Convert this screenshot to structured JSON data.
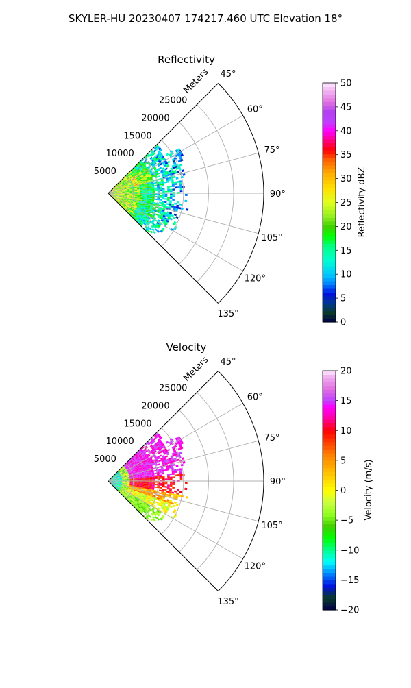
{
  "figure": {
    "title": "SKYLER-HU  20230407  174217.460 UTC Elevation 18°"
  },
  "chart_data": [
    {
      "type": "heatmap",
      "title": "Reflectivity",
      "projection": "polar-sector",
      "range_label": "Meters",
      "range_ticks": [
        5000,
        10000,
        15000,
        20000,
        25000
      ],
      "range_max": 31000,
      "azimuth_min_deg": 45,
      "azimuth_max_deg": 135,
      "azimuth_ticks_deg": [
        45,
        60,
        75,
        90,
        105,
        120,
        135
      ],
      "azimuth_tick_labels": [
        "45°",
        "60°",
        "75°",
        "90°",
        "105°",
        "120°",
        "135°"
      ],
      "grid": true,
      "echo_extent_m": {
        "max_range_45_60": 17000,
        "max_range_60_90": 16000,
        "max_range_90_120": 17000,
        "max_range_120_135": 14000
      },
      "colorbar": {
        "label": "Reflectivity dBZ",
        "min": 0,
        "max": 50,
        "ticks": [
          0,
          5,
          10,
          15,
          20,
          25,
          30,
          35,
          40,
          45,
          50
        ],
        "tick_labels": [
          "0",
          "5",
          "10",
          "15",
          "20",
          "25",
          "30",
          "35",
          "40",
          "45",
          "50"
        ],
        "stops": [
          {
            "v": 0,
            "c": "#00004a"
          },
          {
            "v": 2,
            "c": "#0a3a2a"
          },
          {
            "v": 4,
            "c": "#003a90"
          },
          {
            "v": 6,
            "c": "#0010e0"
          },
          {
            "v": 8,
            "c": "#0080ff"
          },
          {
            "v": 10,
            "c": "#00c8ff"
          },
          {
            "v": 13,
            "c": "#00ffd0"
          },
          {
            "v": 16,
            "c": "#00ff80"
          },
          {
            "v": 18,
            "c": "#00ff00"
          },
          {
            "v": 20,
            "c": "#40d000"
          },
          {
            "v": 22,
            "c": "#90ee20"
          },
          {
            "v": 25,
            "c": "#e0ff20"
          },
          {
            "v": 28,
            "c": "#ffe000"
          },
          {
            "v": 31,
            "c": "#ffb000"
          },
          {
            "v": 34,
            "c": "#ff6000"
          },
          {
            "v": 36,
            "c": "#ff0000"
          },
          {
            "v": 38,
            "c": "#ff0080"
          },
          {
            "v": 40,
            "c": "#ff00ff"
          },
          {
            "v": 42,
            "c": "#c040ff"
          },
          {
            "v": 44,
            "c": "#b040f0"
          },
          {
            "v": 46,
            "c": "#e070e0"
          },
          {
            "v": 48,
            "c": "#f0a8f0"
          },
          {
            "v": 50,
            "c": "#ffe8ff"
          }
        ]
      }
    },
    {
      "type": "heatmap",
      "title": "Velocity",
      "projection": "polar-sector",
      "range_label": "Meters",
      "range_ticks": [
        5000,
        10000,
        15000,
        20000,
        25000
      ],
      "range_max": 31000,
      "azimuth_min_deg": 45,
      "azimuth_max_deg": 135,
      "azimuth_ticks_deg": [
        45,
        60,
        75,
        90,
        105,
        120,
        135
      ],
      "azimuth_tick_labels": [
        "45°",
        "60°",
        "75°",
        "90°",
        "105°",
        "120°",
        "135°"
      ],
      "grid": true,
      "colorbar": {
        "label": "Velocity (m/s)",
        "min": -20,
        "max": 20,
        "ticks": [
          -20,
          -15,
          -10,
          -5,
          0,
          5,
          10,
          15,
          20
        ],
        "tick_labels": [
          "−20",
          "−15",
          "−10",
          "−5",
          "0",
          "5",
          "10",
          "15",
          "20"
        ],
        "stops": [
          {
            "v": -20,
            "c": "#00004a"
          },
          {
            "v": -18,
            "c": "#0a3a2a"
          },
          {
            "v": -16,
            "c": "#0010e0"
          },
          {
            "v": -14,
            "c": "#0080ff"
          },
          {
            "v": -12,
            "c": "#00ffff"
          },
          {
            "v": -10,
            "c": "#00ff90"
          },
          {
            "v": -8,
            "c": "#00ff00"
          },
          {
            "v": -6,
            "c": "#40d000"
          },
          {
            "v": -4,
            "c": "#90ff20"
          },
          {
            "v": -2,
            "c": "#c8ff40"
          },
          {
            "v": 0,
            "c": "#ffff00"
          },
          {
            "v": 3,
            "c": "#ffc000"
          },
          {
            "v": 6,
            "c": "#ff8000"
          },
          {
            "v": 8,
            "c": "#ff4000"
          },
          {
            "v": 10,
            "c": "#ff0000"
          },
          {
            "v": 12,
            "c": "#ff00a0"
          },
          {
            "v": 14,
            "c": "#ff00ff"
          },
          {
            "v": 15,
            "c": "#c040ff"
          },
          {
            "v": 17,
            "c": "#e070e0"
          },
          {
            "v": 19,
            "c": "#f0b0f0"
          },
          {
            "v": 20,
            "c": "#ffe8ff"
          }
        ]
      }
    }
  ]
}
